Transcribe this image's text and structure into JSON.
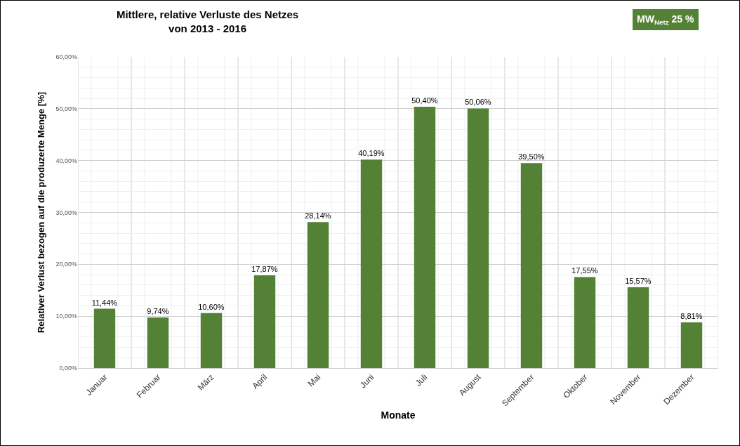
{
  "chart_data": {
    "type": "bar",
    "title": "Mittlere, relative Verluste des Netzes\nvon 2013 - 2016",
    "xlabel": "Monate",
    "ylabel": "Relativer Verlust bezogen auf die produzerte Menge [%]",
    "categories": [
      "Januar",
      "Februar",
      "März",
      "April",
      "Mai",
      "Juni",
      "Juli",
      "August",
      "September",
      "Oktober",
      "November",
      "Dezember"
    ],
    "values": [
      11.44,
      9.74,
      10.6,
      17.87,
      28.14,
      40.19,
      50.4,
      50.06,
      39.5,
      17.55,
      15.57,
      8.81
    ],
    "value_labels": [
      "11,44%",
      "9,74%",
      "10,60%",
      "17,87%",
      "28,14%",
      "40,19%",
      "50,40%",
      "50,06%",
      "39,50%",
      "17,55%",
      "15,57%",
      "8,81%"
    ],
    "color": "#538135",
    "ylim": [
      0,
      60
    ],
    "yticks": [
      {
        "value": 0,
        "label": "0,00%"
      },
      {
        "value": 10,
        "label": "10,00%"
      },
      {
        "value": 20,
        "label": "20,00%"
      },
      {
        "value": 30,
        "label": "30,00%"
      },
      {
        "value": 40,
        "label": "40,00%"
      },
      {
        "value": 50,
        "label": "50,00%"
      },
      {
        "value": 60,
        "label": "60,00%"
      }
    ],
    "grid": true,
    "annotations": [
      "MW$_{Netz}$ 25 %"
    ]
  }
}
